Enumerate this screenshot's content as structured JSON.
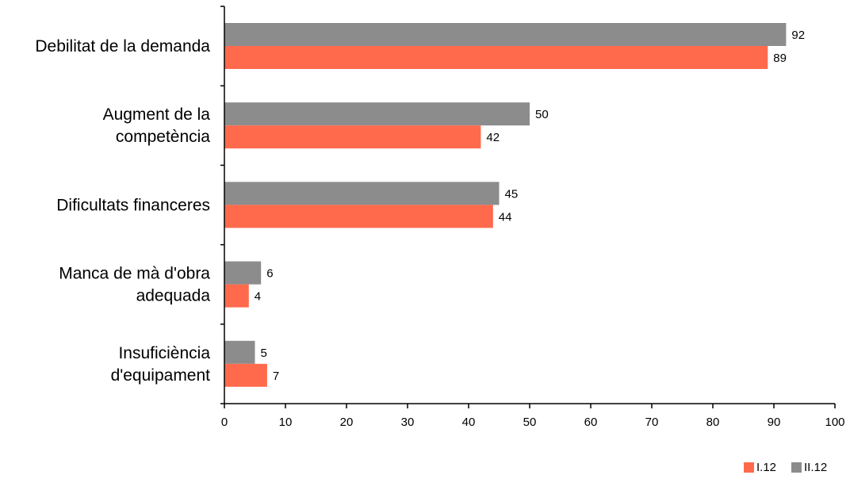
{
  "chart_data": {
    "type": "bar",
    "orientation": "horizontal",
    "categories": [
      [
        "Debilitat de la demanda"
      ],
      [
        "Augment de la",
        "competència"
      ],
      [
        "Dificultats financeres"
      ],
      [
        "Manca de mà d'obra",
        "adequada"
      ],
      [
        "Insuficiència",
        "d'equipament"
      ]
    ],
    "series": [
      {
        "name": "II.12",
        "values": [
          92,
          50,
          45,
          6,
          5
        ],
        "color": "#8c8c8c"
      },
      {
        "name": "I.12",
        "values": [
          89,
          42,
          44,
          4,
          7
        ],
        "color": "#ff6a4d"
      }
    ],
    "data_labels": {
      "II.12": [
        "92",
        "50",
        "45",
        "6",
        "5"
      ],
      "I.12": [
        "89",
        "42",
        "44",
        "4",
        "7"
      ]
    },
    "xlim": [
      0,
      100
    ],
    "xticks": [
      "0",
      "10",
      "20",
      "30",
      "40",
      "50",
      "60",
      "70",
      "80",
      "90",
      "100"
    ],
    "legend_order": [
      "I.12",
      "II.12"
    ],
    "legend_position": "bottom-right",
    "grid": false,
    "title": "",
    "xlabel": "",
    "ylabel": ""
  }
}
